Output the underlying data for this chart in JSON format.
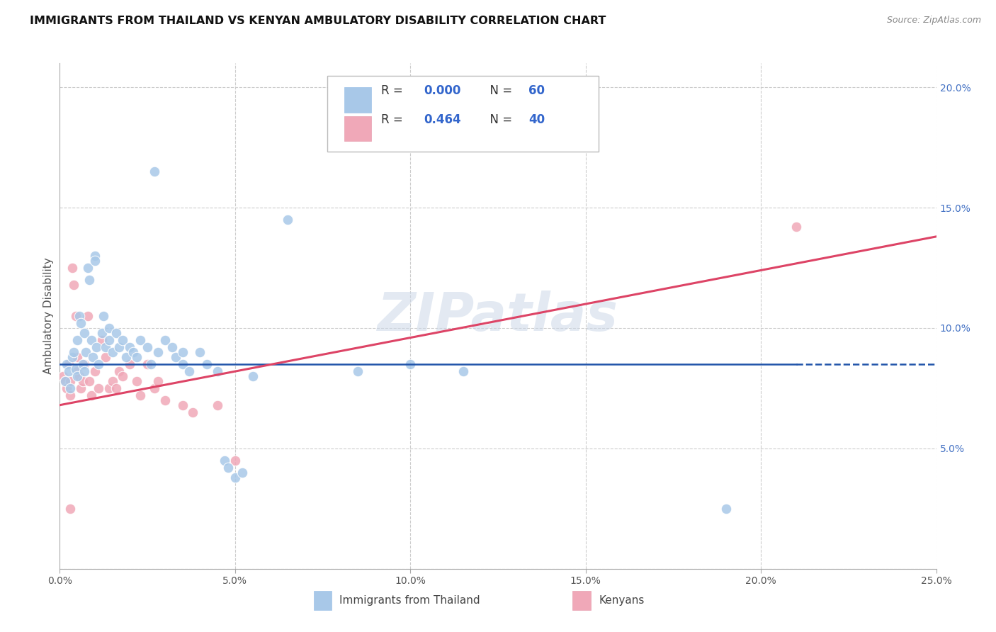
{
  "title": "IMMIGRANTS FROM THAILAND VS KENYAN AMBULATORY DISABILITY CORRELATION CHART",
  "source": "Source: ZipAtlas.com",
  "ylabel": "Ambulatory Disability",
  "xlim": [
    0.0,
    25.0
  ],
  "ylim": [
    0.0,
    21.0
  ],
  "ytick_vals": [
    0.0,
    5.0,
    10.0,
    15.0,
    20.0
  ],
  "xtick_vals": [
    0.0,
    5.0,
    10.0,
    15.0,
    20.0,
    25.0
  ],
  "legend1_R": "0.000",
  "legend1_N": "60",
  "legend2_R": "0.464",
  "legend2_N": "40",
  "blue_color": "#a8c8e8",
  "pink_color": "#f0a8b8",
  "blue_line_color": "#2255aa",
  "pink_line_color": "#dd4466",
  "watermark": "ZIPatlas",
  "thailand_points": [
    [
      0.15,
      7.8
    ],
    [
      0.2,
      8.5
    ],
    [
      0.25,
      8.2
    ],
    [
      0.3,
      7.5
    ],
    [
      0.35,
      8.8
    ],
    [
      0.4,
      9.0
    ],
    [
      0.45,
      8.3
    ],
    [
      0.5,
      9.5
    ],
    [
      0.5,
      8.0
    ],
    [
      0.55,
      10.5
    ],
    [
      0.6,
      10.2
    ],
    [
      0.65,
      8.5
    ],
    [
      0.7,
      9.8
    ],
    [
      0.7,
      8.2
    ],
    [
      0.75,
      9.0
    ],
    [
      0.8,
      12.5
    ],
    [
      0.85,
      12.0
    ],
    [
      0.9,
      9.5
    ],
    [
      0.95,
      8.8
    ],
    [
      1.0,
      13.0
    ],
    [
      1.0,
      12.8
    ],
    [
      1.05,
      9.2
    ],
    [
      1.1,
      8.5
    ],
    [
      1.2,
      9.8
    ],
    [
      1.25,
      10.5
    ],
    [
      1.3,
      9.2
    ],
    [
      1.4,
      10.0
    ],
    [
      1.4,
      9.5
    ],
    [
      1.5,
      9.0
    ],
    [
      1.6,
      9.8
    ],
    [
      1.7,
      9.2
    ],
    [
      1.8,
      9.5
    ],
    [
      1.9,
      8.8
    ],
    [
      2.0,
      9.2
    ],
    [
      2.1,
      9.0
    ],
    [
      2.2,
      8.8
    ],
    [
      2.3,
      9.5
    ],
    [
      2.5,
      9.2
    ],
    [
      2.6,
      8.5
    ],
    [
      2.7,
      16.5
    ],
    [
      2.8,
      9.0
    ],
    [
      3.0,
      9.5
    ],
    [
      3.2,
      9.2
    ],
    [
      3.3,
      8.8
    ],
    [
      3.5,
      9.0
    ],
    [
      3.5,
      8.5
    ],
    [
      3.7,
      8.2
    ],
    [
      4.0,
      9.0
    ],
    [
      4.2,
      8.5
    ],
    [
      4.5,
      8.2
    ],
    [
      4.7,
      4.5
    ],
    [
      4.8,
      4.2
    ],
    [
      5.0,
      3.8
    ],
    [
      5.2,
      4.0
    ],
    [
      5.5,
      8.0
    ],
    [
      6.5,
      14.5
    ],
    [
      8.5,
      8.2
    ],
    [
      10.0,
      8.5
    ],
    [
      11.5,
      8.2
    ],
    [
      19.0,
      2.5
    ]
  ],
  "kenyan_points": [
    [
      0.1,
      8.0
    ],
    [
      0.15,
      7.8
    ],
    [
      0.2,
      7.5
    ],
    [
      0.25,
      8.5
    ],
    [
      0.3,
      7.8
    ],
    [
      0.3,
      7.2
    ],
    [
      0.35,
      12.5
    ],
    [
      0.4,
      11.8
    ],
    [
      0.45,
      10.5
    ],
    [
      0.5,
      8.8
    ],
    [
      0.5,
      8.2
    ],
    [
      0.55,
      8.0
    ],
    [
      0.6,
      7.5
    ],
    [
      0.65,
      7.8
    ],
    [
      0.7,
      8.5
    ],
    [
      0.8,
      10.5
    ],
    [
      0.85,
      7.8
    ],
    [
      0.9,
      7.2
    ],
    [
      1.0,
      8.2
    ],
    [
      1.1,
      7.5
    ],
    [
      1.2,
      9.5
    ],
    [
      1.3,
      8.8
    ],
    [
      1.4,
      7.5
    ],
    [
      1.5,
      7.8
    ],
    [
      1.6,
      7.5
    ],
    [
      1.7,
      8.2
    ],
    [
      1.8,
      8.0
    ],
    [
      2.0,
      8.5
    ],
    [
      2.2,
      7.8
    ],
    [
      2.3,
      7.2
    ],
    [
      2.5,
      8.5
    ],
    [
      2.7,
      7.5
    ],
    [
      2.8,
      7.8
    ],
    [
      3.0,
      7.0
    ],
    [
      3.5,
      6.8
    ],
    [
      3.8,
      6.5
    ],
    [
      4.5,
      6.8
    ],
    [
      5.0,
      4.5
    ],
    [
      0.3,
      2.5
    ],
    [
      21.0,
      14.2
    ]
  ],
  "blue_line_y_val": 8.5,
  "blue_solid_xmax": 21.0,
  "blue_dash_xstart": 21.0,
  "pink_line_x0": 0.0,
  "pink_line_y0": 6.8,
  "pink_line_x1": 25.0,
  "pink_line_y1": 13.8
}
